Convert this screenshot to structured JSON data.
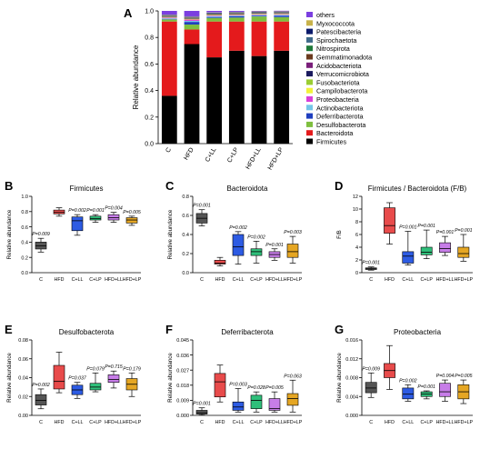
{
  "chart_data": [
    {
      "id": "A",
      "panel_letter": "A",
      "type": "bar",
      "stacked": true,
      "ylabel": "Relative abundance",
      "ylim": [
        0,
        1
      ],
      "yticks": [
        "0.0",
        "0.2",
        "0.4",
        "0.6",
        "0.8",
        "1.0"
      ],
      "categories": [
        "C",
        "HFD",
        "C+LL",
        "C+LP",
        "HFD+LL",
        "HFD+LP"
      ],
      "legend_placement": "right",
      "series": [
        {
          "name": "Firmicutes",
          "color": "#000000",
          "values": [
            0.36,
            0.75,
            0.65,
            0.7,
            0.66,
            0.7
          ]
        },
        {
          "name": "Bacteroidota",
          "color": "#e41a1c",
          "values": [
            0.56,
            0.11,
            0.27,
            0.22,
            0.26,
            0.22
          ]
        },
        {
          "name": "Desulfobacterota",
          "color": "#7fbf3f",
          "values": [
            0.016,
            0.037,
            0.027,
            0.03,
            0.038,
            0.033
          ]
        },
        {
          "name": "Deferribacterota",
          "color": "#1f3fbf",
          "values": [
            0.002,
            0.02,
            0.006,
            0.009,
            0.005,
            0.01
          ]
        },
        {
          "name": "Actinobacteriota",
          "color": "#74c6e8",
          "values": [
            0.006,
            0.008,
            0.008,
            0.006,
            0.006,
            0.007
          ]
        },
        {
          "name": "Proteobacteria",
          "color": "#d93fd9",
          "values": [
            0.006,
            0.01,
            0.005,
            0.005,
            0.005,
            0.005
          ]
        },
        {
          "name": "Campilobacterota",
          "color": "#f2f23a",
          "values": [
            0.004,
            0.005,
            0.004,
            0.004,
            0.004,
            0.004
          ]
        },
        {
          "name": "Fusobacteriota",
          "color": "#9acd32",
          "values": [
            0.002,
            0.002,
            0.002,
            0.002,
            0.002,
            0.002
          ]
        },
        {
          "name": "Verrucomicrobiota",
          "color": "#1a1a5e",
          "values": [
            0.004,
            0.004,
            0.004,
            0.004,
            0.004,
            0.004
          ]
        },
        {
          "name": "Acidobacteriota",
          "color": "#7a1f7a",
          "values": [
            0.002,
            0.002,
            0.002,
            0.002,
            0.002,
            0.002
          ]
        },
        {
          "name": "Gemmatimonadota",
          "color": "#6b3a1e",
          "values": [
            0.002,
            0.002,
            0.002,
            0.002,
            0.002,
            0.002
          ]
        },
        {
          "name": "Nitrospirota",
          "color": "#1f7a3a",
          "values": [
            0.002,
            0.002,
            0.002,
            0.002,
            0.002,
            0.002
          ]
        },
        {
          "name": "Spirochaetota",
          "color": "#3f6a8a",
          "values": [
            0.002,
            0.002,
            0.002,
            0.002,
            0.002,
            0.002
          ]
        },
        {
          "name": "Patescibacteria",
          "color": "#0b1a6b",
          "values": [
            0.002,
            0.002,
            0.002,
            0.002,
            0.002,
            0.002
          ]
        },
        {
          "name": "Myxococcota",
          "color": "#c8b24a",
          "values": [
            0.002,
            0.002,
            0.002,
            0.002,
            0.002,
            0.002
          ]
        },
        {
          "name": "others",
          "color": "#7b3fe0",
          "values": [
            0.004,
            0.004,
            0.004,
            0.004,
            0.004,
            0.004
          ]
        }
      ]
    },
    {
      "id": "B",
      "panel_letter": "B",
      "type": "box",
      "title": "Firmicutes",
      "ylabel": "Relative abundance",
      "ylim": [
        0,
        1.0
      ],
      "yticks": [
        "0.0",
        "0.2",
        "0.4",
        "0.6",
        "0.8",
        "1.0"
      ],
      "categories": [
        "C",
        "HFD",
        "C+LL",
        "C+LP",
        "HFD+LL",
        "HFD+LP"
      ],
      "boxes": [
        {
          "min": 0.27,
          "q1": 0.31,
          "median": 0.35,
          "q3": 0.4,
          "max": 0.45,
          "p_label": "P=0.009",
          "color": "#555555"
        },
        {
          "min": 0.74,
          "q1": 0.77,
          "median": 0.79,
          "q3": 0.82,
          "max": 0.85,
          "p_label": "",
          "color": "#e84b4b"
        },
        {
          "min": 0.49,
          "q1": 0.55,
          "median": 0.68,
          "q3": 0.73,
          "max": 0.76,
          "p_label": "P=0.002",
          "color": "#2d5be3"
        },
        {
          "min": 0.66,
          "q1": 0.69,
          "median": 0.71,
          "q3": 0.74,
          "max": 0.76,
          "p_label": "P=0.001",
          "color": "#2fbf7a"
        },
        {
          "min": 0.66,
          "q1": 0.69,
          "median": 0.72,
          "q3": 0.76,
          "max": 0.79,
          "p_label": "P=0.004",
          "color": "#c77de8"
        },
        {
          "min": 0.62,
          "q1": 0.65,
          "median": 0.69,
          "q3": 0.72,
          "max": 0.74,
          "p_label": "P=0.005",
          "color": "#e5a623"
        }
      ]
    },
    {
      "id": "C",
      "panel_letter": "C",
      "type": "box",
      "title": "Bacteroidota",
      "ylabel": "Relative abundance",
      "ylim": [
        0,
        0.8
      ],
      "yticks": [
        "0.0",
        "0.2",
        "0.4",
        "0.6",
        "0.8"
      ],
      "categories": [
        "C",
        "HFD",
        "C+LL",
        "C+LP",
        "HFD+LL",
        "HFD+LP"
      ],
      "boxes": [
        {
          "min": 0.49,
          "q1": 0.52,
          "median": 0.57,
          "q3": 0.62,
          "max": 0.66,
          "p_label": "P=0.001",
          "color": "#555555"
        },
        {
          "min": 0.07,
          "q1": 0.09,
          "median": 0.1,
          "q3": 0.13,
          "max": 0.16,
          "p_label": "",
          "color": "#e84b4b"
        },
        {
          "min": 0.09,
          "q1": 0.18,
          "median": 0.27,
          "q3": 0.4,
          "max": 0.43,
          "p_label": "P=0.002",
          "color": "#2d5be3"
        },
        {
          "min": 0.1,
          "q1": 0.18,
          "median": 0.22,
          "q3": 0.25,
          "max": 0.33,
          "p_label": "P=0.002",
          "color": "#2fbf7a"
        },
        {
          "min": 0.13,
          "q1": 0.16,
          "median": 0.19,
          "q3": 0.22,
          "max": 0.25,
          "p_label": "P=0.001",
          "color": "#c77de8"
        },
        {
          "min": 0.1,
          "q1": 0.16,
          "median": 0.22,
          "q3": 0.3,
          "max": 0.38,
          "p_label": "P=0.003",
          "color": "#e5a623"
        }
      ]
    },
    {
      "id": "D",
      "panel_letter": "D",
      "type": "box",
      "title": "Firmicutes / Bacteroidota (F/B)",
      "ylabel": "F/B",
      "ylim": [
        0,
        12
      ],
      "yticks": [
        "0",
        "2",
        "4",
        "6",
        "8",
        "10",
        "12"
      ],
      "categories": [
        "C",
        "HFD",
        "C+LL",
        "C+LP",
        "HFD+LL",
        "HFD+LP"
      ],
      "boxes": [
        {
          "min": 0.4,
          "q1": 0.5,
          "median": 0.6,
          "q3": 0.75,
          "max": 0.9,
          "p_label": "P=0.001",
          "color": "#555555"
        },
        {
          "min": 4.5,
          "q1": 6.2,
          "median": 7.4,
          "q3": 10.2,
          "max": 11.0,
          "p_label": "",
          "color": "#e84b4b"
        },
        {
          "min": 1.2,
          "q1": 1.5,
          "median": 2.6,
          "q3": 3.3,
          "max": 6.5,
          "p_label": "P=0.001",
          "color": "#2d5be3"
        },
        {
          "min": 2.2,
          "q1": 2.8,
          "median": 3.2,
          "q3": 4.0,
          "max": 6.7,
          "p_label": "P=0.001",
          "color": "#2fbf7a"
        },
        {
          "min": 2.7,
          "q1": 3.2,
          "median": 3.8,
          "q3": 4.7,
          "max": 5.7,
          "p_label": "P=0.001",
          "color": "#c77de8"
        },
        {
          "min": 1.8,
          "q1": 2.4,
          "median": 3.0,
          "q3": 4.0,
          "max": 6.0,
          "p_label": "P=0.001",
          "color": "#e5a623"
        }
      ]
    },
    {
      "id": "E",
      "panel_letter": "E",
      "type": "box",
      "title": "Desulfobacterota",
      "ylabel": "Relative abundance",
      "ylim": [
        0,
        0.08
      ],
      "yticks": [
        "0.00",
        "0.02",
        "0.04",
        "0.06",
        "0.08"
      ],
      "categories": [
        "C",
        "HFD",
        "C+LL",
        "C+LP",
        "HFD+LL",
        "HFD+LP"
      ],
      "boxes": [
        {
          "min": 0.007,
          "q1": 0.011,
          "median": 0.016,
          "q3": 0.022,
          "max": 0.028,
          "p_label": "P=0.002",
          "color": "#555555"
        },
        {
          "min": 0.024,
          "q1": 0.028,
          "median": 0.036,
          "q3": 0.053,
          "max": 0.067,
          "p_label": "",
          "color": "#e84b4b"
        },
        {
          "min": 0.018,
          "q1": 0.022,
          "median": 0.027,
          "q3": 0.032,
          "max": 0.035,
          "p_label": "P=0.037",
          "color": "#2d5be3"
        },
        {
          "min": 0.025,
          "q1": 0.027,
          "median": 0.03,
          "q3": 0.034,
          "max": 0.045,
          "p_label": "P=0.079",
          "color": "#2fbf7a"
        },
        {
          "min": 0.029,
          "q1": 0.035,
          "median": 0.038,
          "q3": 0.043,
          "max": 0.047,
          "p_label": "P=0.715",
          "color": "#c77de8"
        },
        {
          "min": 0.02,
          "q1": 0.027,
          "median": 0.033,
          "q3": 0.039,
          "max": 0.045,
          "p_label": "P=0.179",
          "color": "#e5a623"
        }
      ]
    },
    {
      "id": "F",
      "panel_letter": "F",
      "type": "box",
      "title": "Deferribacterota",
      "ylabel": "Relative abundance",
      "ylim": [
        0,
        0.045
      ],
      "yticks": [
        "0.000",
        "0.009",
        "0.018",
        "0.027",
        "0.036",
        "0.045"
      ],
      "categories": [
        "C",
        "HFD",
        "C+LL",
        "C+LP",
        "HFD+LL",
        "HFD+LP"
      ],
      "boxes": [
        {
          "min": 0.0002,
          "q1": 0.0008,
          "median": 0.0015,
          "q3": 0.003,
          "max": 0.0045,
          "p_label": "P=0.001",
          "color": "#555555"
        },
        {
          "min": 0.008,
          "q1": 0.011,
          "median": 0.02,
          "q3": 0.025,
          "max": 0.03,
          "p_label": "",
          "color": "#e84b4b"
        },
        {
          "min": 0.002,
          "q1": 0.003,
          "median": 0.005,
          "q3": 0.008,
          "max": 0.016,
          "p_label": "P=0.003",
          "color": "#2d5be3"
        },
        {
          "min": 0.002,
          "q1": 0.004,
          "median": 0.009,
          "q3": 0.012,
          "max": 0.014,
          "p_label": "P=0.028",
          "color": "#2fbf7a"
        },
        {
          "min": 0.002,
          "q1": 0.003,
          "median": 0.004,
          "q3": 0.01,
          "max": 0.014,
          "p_label": "P=0.005",
          "color": "#c77de8"
        },
        {
          "min": 0.002,
          "q1": 0.006,
          "median": 0.01,
          "q3": 0.013,
          "max": 0.021,
          "p_label": "P=0.063",
          "color": "#e5a623"
        }
      ]
    },
    {
      "id": "G",
      "panel_letter": "G",
      "type": "box",
      "title": "Proteobacteria",
      "ylabel": "Relative abundance",
      "ylim": [
        0,
        0.016
      ],
      "yticks": [
        "0.000",
        "0.004",
        "0.008",
        "0.012",
        "0.016"
      ],
      "categories": [
        "C",
        "HFD",
        "C+LL",
        "C+LP",
        "HFD+LL",
        "HFD+LP"
      ],
      "boxes": [
        {
          "min": 0.0038,
          "q1": 0.0048,
          "median": 0.0058,
          "q3": 0.007,
          "max": 0.009,
          "p_label": "P=0.009",
          "color": "#555555"
        },
        {
          "min": 0.0055,
          "q1": 0.008,
          "median": 0.0095,
          "q3": 0.011,
          "max": 0.0148,
          "p_label": "",
          "color": "#e84b4b"
        },
        {
          "min": 0.003,
          "q1": 0.0035,
          "median": 0.0045,
          "q3": 0.0058,
          "max": 0.0065,
          "p_label": "P=0.002",
          "color": "#2d5be3"
        },
        {
          "min": 0.0035,
          "q1": 0.004,
          "median": 0.0045,
          "q3": 0.005,
          "max": 0.0052,
          "p_label": "P=0.001",
          "color": "#2fbf7a"
        },
        {
          "min": 0.003,
          "q1": 0.004,
          "median": 0.005,
          "q3": 0.0068,
          "max": 0.0075,
          "p_label": "P=0.004",
          "color": "#c77de8"
        },
        {
          "min": 0.0025,
          "q1": 0.0035,
          "median": 0.005,
          "q3": 0.0065,
          "max": 0.0075,
          "p_label": "P=0.005",
          "color": "#e5a623"
        }
      ]
    }
  ]
}
